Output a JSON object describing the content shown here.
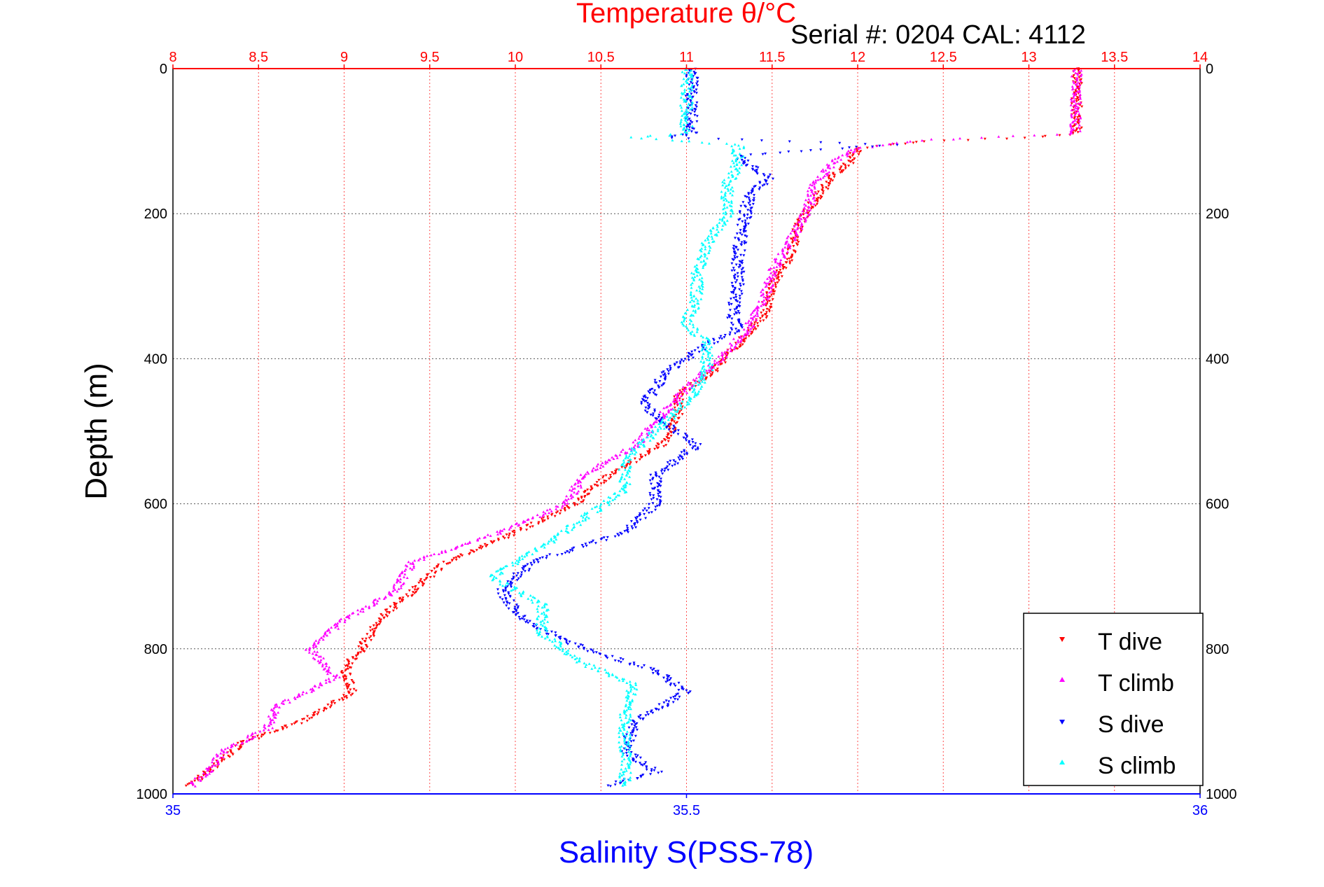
{
  "header": {
    "title": "Temperature θ/°C",
    "subtitle": "Serial #: 0204  CAL: 4112"
  },
  "colors": {
    "temperature_axis": "#ff0000",
    "salinity_axis": "#0000ff",
    "t_dive": "#ff0000",
    "t_climb": "#ff00ff",
    "s_dive": "#0000ff",
    "s_climb": "#00ffff",
    "grid_depth": "#555555",
    "grid_temp": "#ff4d4d"
  },
  "chart_data": {
    "type": "scatter",
    "title": "Temperature θ/°C",
    "subtitle": "Serial #: 0204  CAL: 4112",
    "ylabel": "Depth (m)",
    "xlabel": "Salinity S(PSS-78)",
    "x_top_label": "Temperature θ/°C",
    "y_reversed": true,
    "ylim": [
      0,
      1000
    ],
    "x_top_lim": [
      8,
      14
    ],
    "x_bottom_lim": [
      35,
      36
    ],
    "y_ticks": [
      "0",
      "200",
      "400",
      "600",
      "800",
      "1000"
    ],
    "x_top_ticks": [
      "8",
      "8.5",
      "9",
      "9.5",
      "10",
      "10.5",
      "11",
      "11.5",
      "12",
      "12.5",
      "13",
      "13.5",
      "14"
    ],
    "x_bottom_ticks": [
      "35",
      "35.5",
      "36"
    ],
    "grid": true,
    "legend_position": "bottom-right",
    "legend": [
      "T dive",
      "T climb",
      "S dive",
      "S climb"
    ],
    "series": [
      {
        "name": "T dive",
        "axis": "temperature",
        "depth": [
          0,
          90,
          95,
          100,
          110,
          130,
          150,
          180,
          220,
          260,
          300,
          340,
          380,
          420,
          450,
          480,
          520,
          560,
          600,
          640,
          680,
          720,
          760,
          800,
          830,
          860,
          900,
          930,
          960,
          990
        ],
        "values": [
          13.28,
          13.28,
          13.0,
          12.4,
          12.0,
          11.95,
          11.85,
          11.75,
          11.65,
          11.6,
          11.5,
          11.45,
          11.3,
          11.15,
          10.95,
          10.95,
          10.85,
          10.55,
          10.35,
          10.0,
          9.6,
          9.4,
          9.2,
          9.1,
          9.0,
          9.05,
          8.75,
          8.4,
          8.25,
          8.1
        ]
      },
      {
        "name": "T climb",
        "axis": "temperature",
        "depth": [
          0,
          90,
          95,
          100,
          110,
          130,
          160,
          200,
          240,
          280,
          320,
          360,
          400,
          440,
          480,
          520,
          560,
          600,
          640,
          680,
          720,
          760,
          800,
          840,
          880,
          910,
          940,
          970,
          990
        ],
        "values": [
          13.28,
          13.27,
          12.7,
          12.3,
          12.0,
          11.85,
          11.75,
          11.7,
          11.6,
          11.5,
          11.45,
          11.35,
          11.2,
          11.0,
          10.85,
          10.7,
          10.4,
          10.3,
          9.9,
          9.4,
          9.3,
          9.0,
          8.8,
          8.95,
          8.6,
          8.55,
          8.3,
          8.2,
          8.1
        ]
      },
      {
        "name": "S dive",
        "axis": "salinity",
        "depth": [
          0,
          90,
          95,
          105,
          120,
          150,
          180,
          220,
          260,
          300,
          340,
          360,
          380,
          420,
          460,
          480,
          520,
          560,
          600,
          640,
          680,
          720,
          760,
          800,
          830,
          860,
          900,
          940,
          970,
          990
        ],
        "values": [
          35.505,
          35.505,
          35.48,
          35.7,
          35.55,
          35.58,
          35.56,
          35.555,
          35.55,
          35.55,
          35.545,
          35.55,
          35.52,
          35.48,
          35.46,
          35.47,
          35.51,
          35.47,
          35.47,
          35.44,
          35.35,
          35.32,
          35.34,
          35.4,
          35.47,
          35.5,
          35.45,
          35.44,
          35.47,
          35.42
        ]
      },
      {
        "name": "S climb",
        "axis": "salinity",
        "depth": [
          0,
          90,
          95,
          105,
          130,
          160,
          200,
          240,
          280,
          320,
          350,
          380,
          420,
          460,
          500,
          540,
          580,
          620,
          660,
          700,
          740,
          780,
          820,
          850,
          880,
          920,
          960,
          990
        ],
        "values": [
          35.5,
          35.5,
          35.45,
          35.55,
          35.55,
          35.54,
          35.54,
          35.52,
          35.51,
          35.51,
          35.5,
          35.52,
          35.52,
          35.5,
          35.47,
          35.44,
          35.44,
          35.4,
          35.36,
          35.31,
          35.36,
          35.36,
          35.4,
          35.45,
          35.44,
          35.44,
          35.44,
          35.44
        ]
      }
    ]
  }
}
